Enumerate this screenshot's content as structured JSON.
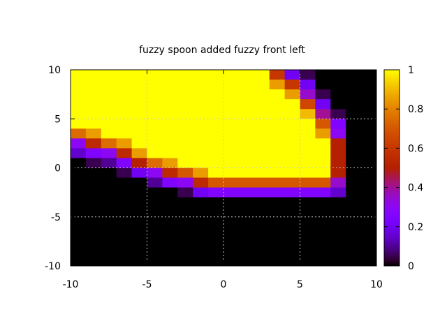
{
  "chart_data": {
    "type": "heatmap",
    "title": "fuzzy spoon added fuzzy front left",
    "xlabel": "",
    "ylabel": "",
    "xlim": [
      -10,
      10
    ],
    "ylim": [
      -10,
      10
    ],
    "x_ticks": [
      "-10",
      "-5",
      "0",
      "5",
      "10"
    ],
    "y_ticks": [
      "10",
      "5",
      "0",
      "-5",
      "-10"
    ],
    "grid": true,
    "colorbar": {
      "range": [
        0,
        1
      ],
      "ticks": [
        "1",
        "0.8",
        "0.6",
        "0.4",
        "0.2",
        "0"
      ],
      "palette": "black-blue-purple-red-orange-yellow"
    },
    "x_centers": [
      -9.5,
      -8.5,
      -7.5,
      -6.5,
      -5.5,
      -4.5,
      -3.5,
      -2.5,
      -1.5,
      -0.5,
      0.5,
      1.5,
      2.5,
      3.5,
      4.5,
      5.5,
      6.5,
      7.5,
      8.5,
      9.5
    ],
    "y_centers": [
      9.5,
      8.5,
      7.5,
      6.5,
      5.5,
      4.5,
      3.5,
      2.5,
      1.5,
      0.5,
      -0.5,
      -1.5,
      -2.5,
      -3.5,
      -4.5,
      -5.5,
      -6.5,
      -7.5,
      -8.5,
      -9.5
    ],
    "values": [
      [
        1,
        1,
        1,
        1,
        1,
        1,
        1,
        1,
        1,
        1,
        1,
        1,
        1,
        0.6,
        0.2,
        0.05,
        0,
        0,
        0,
        0
      ],
      [
        1,
        1,
        1,
        1,
        1,
        1,
        1,
        1,
        1,
        1,
        1,
        1,
        1,
        0.85,
        0.6,
        0.2,
        0,
        0,
        0,
        0
      ],
      [
        1,
        1,
        1,
        1,
        1,
        1,
        1,
        1,
        1,
        1,
        1,
        1,
        1,
        1,
        0.85,
        0.35,
        0.05,
        0,
        0,
        0
      ],
      [
        1,
        1,
        1,
        1,
        1,
        1,
        1,
        1,
        1,
        1,
        1,
        1,
        1,
        1,
        1,
        0.65,
        0.2,
        0,
        0,
        0
      ],
      [
        1,
        1,
        1,
        1,
        1,
        1,
        1,
        1,
        1,
        1,
        1,
        1,
        1,
        1,
        1,
        0.9,
        0.4,
        0.05,
        0,
        0
      ],
      [
        1,
        1,
        1,
        1,
        1,
        1,
        1,
        1,
        1,
        1,
        1,
        1,
        1,
        1,
        1,
        1,
        0.7,
        0.25,
        0,
        0
      ],
      [
        0.75,
        0.85,
        1,
        1,
        1,
        1,
        1,
        1,
        1,
        1,
        1,
        1,
        1,
        1,
        1,
        1,
        0.85,
        0.3,
        0,
        0
      ],
      [
        0.3,
        0.55,
        0.75,
        0.85,
        1,
        1,
        1,
        1,
        1,
        1,
        1,
        1,
        1,
        1,
        1,
        1,
        1,
        0.5,
        0,
        0
      ],
      [
        0.15,
        0.25,
        0.3,
        0.55,
        0.85,
        1,
        1,
        1,
        1,
        1,
        1,
        1,
        1,
        1,
        1,
        1,
        1,
        0.5,
        0,
        0
      ],
      [
        0,
        0.05,
        0.1,
        0.25,
        0.5,
        0.75,
        0.85,
        1,
        1,
        1,
        1,
        1,
        1,
        1,
        1,
        1,
        1,
        0.5,
        0,
        0
      ],
      [
        0,
        0,
        0,
        0.05,
        0.2,
        0.3,
        0.55,
        0.7,
        0.85,
        1,
        1,
        1,
        1,
        1,
        1,
        1,
        1,
        0.5,
        0,
        0
      ],
      [
        0,
        0,
        0,
        0,
        0,
        0.1,
        0.25,
        0.3,
        0.55,
        0.7,
        0.7,
        0.7,
        0.7,
        0.7,
        0.7,
        0.7,
        0.7,
        0.35,
        0,
        0
      ],
      [
        0,
        0,
        0,
        0,
        0,
        0,
        0,
        0.05,
        0.2,
        0.25,
        0.25,
        0.25,
        0.25,
        0.25,
        0.25,
        0.25,
        0.25,
        0.15,
        0,
        0
      ],
      [
        0,
        0,
        0,
        0,
        0,
        0,
        0,
        0,
        0,
        0,
        0,
        0,
        0,
        0,
        0,
        0,
        0,
        0,
        0,
        0
      ],
      [
        0,
        0,
        0,
        0,
        0,
        0,
        0,
        0,
        0,
        0,
        0,
        0,
        0,
        0,
        0,
        0,
        0,
        0,
        0,
        0
      ],
      [
        0,
        0,
        0,
        0,
        0,
        0,
        0,
        0,
        0,
        0,
        0,
        0,
        0,
        0,
        0,
        0,
        0,
        0,
        0,
        0
      ],
      [
        0,
        0,
        0,
        0,
        0,
        0,
        0,
        0,
        0,
        0,
        0,
        0,
        0,
        0,
        0,
        0,
        0,
        0,
        0,
        0
      ],
      [
        0,
        0,
        0,
        0,
        0,
        0,
        0,
        0,
        0,
        0,
        0,
        0,
        0,
        0,
        0,
        0,
        0,
        0,
        0,
        0
      ],
      [
        0,
        0,
        0,
        0,
        0,
        0,
        0,
        0,
        0,
        0,
        0,
        0,
        0,
        0,
        0,
        0,
        0,
        0,
        0,
        0
      ],
      [
        0,
        0,
        0,
        0,
        0,
        0,
        0,
        0,
        0,
        0,
        0,
        0,
        0,
        0,
        0,
        0,
        0,
        0,
        0,
        0
      ]
    ]
  }
}
